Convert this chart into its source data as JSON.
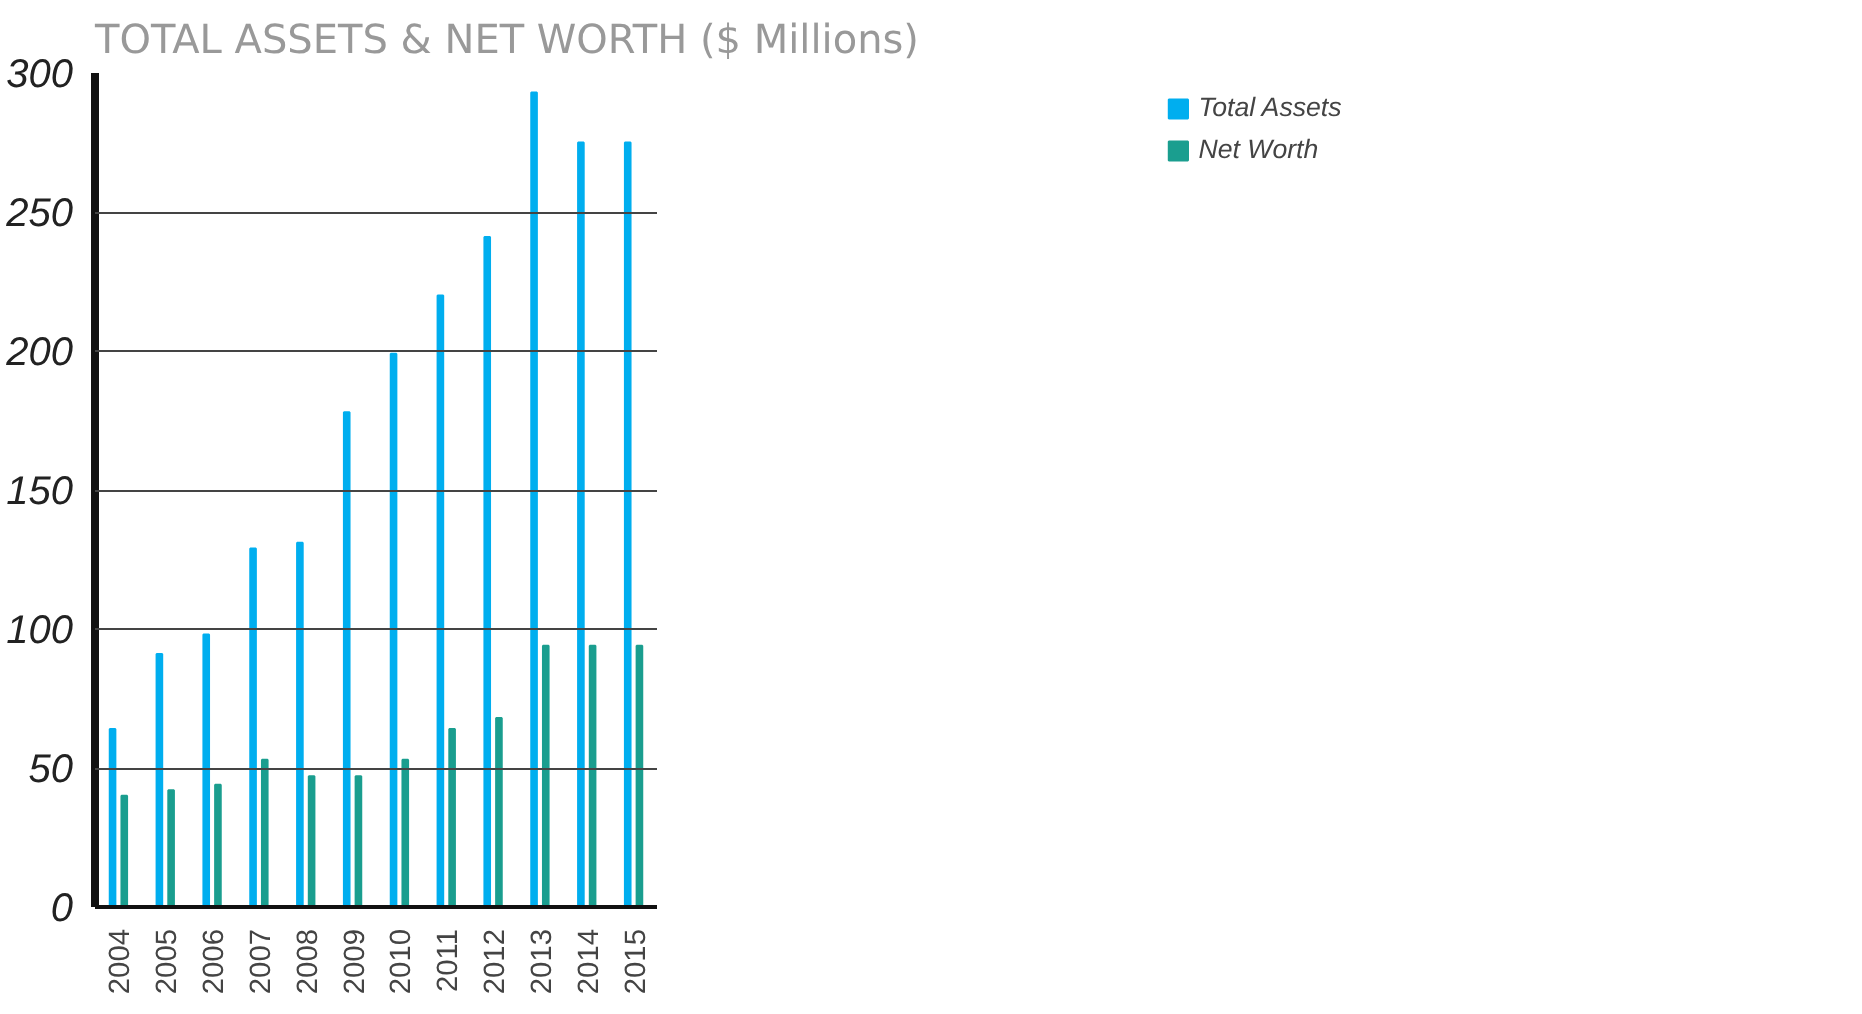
{
  "chart_data": {
    "type": "bar",
    "title": "TOTAL ASSETS & NET WORTH ($ Millions)",
    "categories": [
      "2004",
      "2005",
      "2006",
      "2007",
      "2008",
      "2009",
      "2010",
      "2011",
      "2012",
      "2013",
      "2014",
      "2015"
    ],
    "series": [
      {
        "name": "Total Assets",
        "color": "#00aeef",
        "values": [
          64,
          91,
          98,
          129,
          131,
          178,
          199,
          220,
          241,
          293,
          275,
          275
        ]
      },
      {
        "name": "Net Worth",
        "color": "#1a9e8f",
        "values": [
          40,
          42,
          44,
          53,
          47,
          47,
          53,
          64,
          68,
          94,
          94,
          94
        ]
      }
    ],
    "ylim": [
      0,
      300
    ],
    "yticks": [
      0,
      50,
      100,
      150,
      200,
      250,
      300
    ],
    "grid": "y",
    "legend": "top right"
  }
}
